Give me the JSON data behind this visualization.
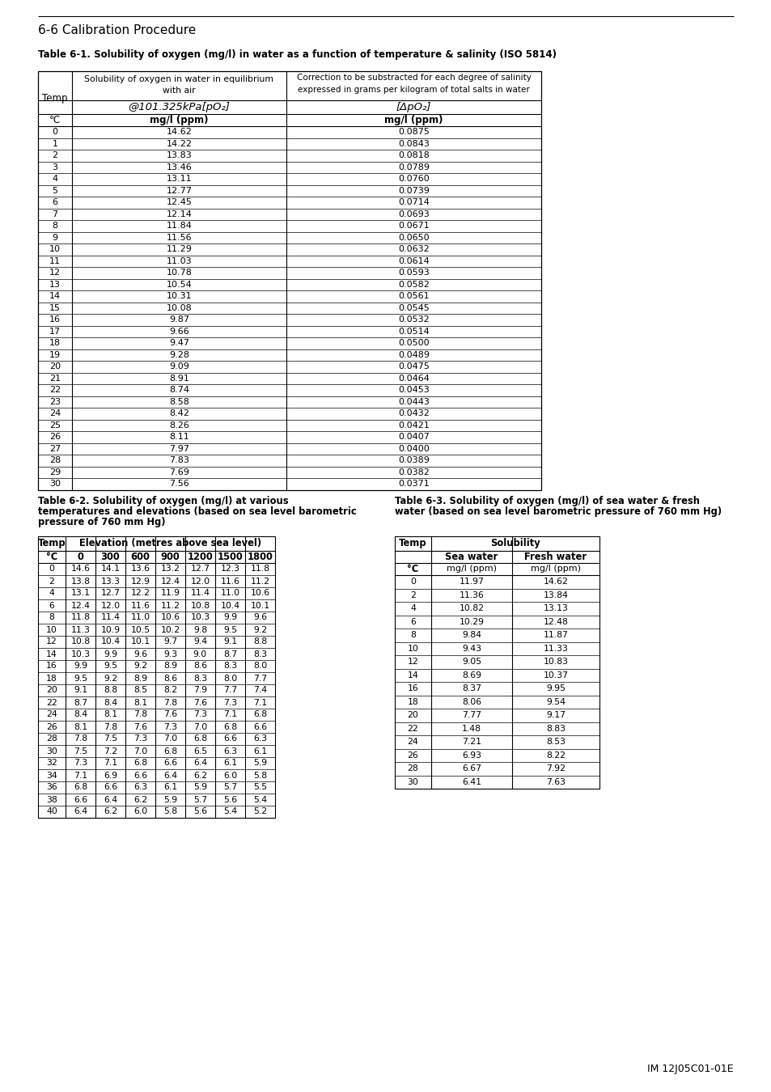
{
  "page_title": "6-6 Calibration Procedure",
  "table1_caption": "Table 6-1. Solubility of oxygen (mg/l) in water as a function of temperature & salinity (ISO 5814)",
  "table1_temps": [
    0,
    1,
    2,
    3,
    4,
    5,
    6,
    7,
    8,
    9,
    10,
    11,
    12,
    13,
    14,
    15,
    16,
    17,
    18,
    19,
    20,
    21,
    22,
    23,
    24,
    25,
    26,
    27,
    28,
    29,
    30
  ],
  "table1_sol": [
    "14.62",
    "14.22",
    "13.83",
    "13.46",
    "13.11",
    "12.77",
    "12.45",
    "12.14",
    "11.84",
    "11.56",
    "11.29",
    "11.03",
    "10.78",
    "10.54",
    "10.31",
    "10.08",
    "9.87",
    "9.66",
    "9.47",
    "9.28",
    "9.09",
    "8.91",
    "8.74",
    "8.58",
    "8.42",
    "8.26",
    "8.11",
    "7.97",
    "7.83",
    "7.69",
    "7.56"
  ],
  "table1_corr": [
    "0.0875",
    "0.0843",
    "0.0818",
    "0.0789",
    "0.0760",
    "0.0739",
    "0.0714",
    "0.0693",
    "0.0671",
    "0.0650",
    "0.0632",
    "0.0614",
    "0.0593",
    "0.0582",
    "0.0561",
    "0.0545",
    "0.0532",
    "0.0514",
    "0.0500",
    "0.0489",
    "0.0475",
    "0.0464",
    "0.0453",
    "0.0443",
    "0.0432",
    "0.0421",
    "0.0407",
    "0.0400",
    "0.0389",
    "0.0382",
    "0.0371"
  ],
  "table2_caption_l1": "Table 6-2. Solubility of oxygen (mg/l) at various",
  "table2_caption_l2": "temperatures and elevations (based on sea level barometric",
  "table2_caption_l3": "pressure of 760 mm Hg)",
  "table3_caption_l1": "Table 6-3. Solubility of oxygen (mg/l) of sea water & fresh",
  "table3_caption_l2": "water (based on sea level barometric pressure of 760 mm Hg)",
  "table2_elevations": [
    "0",
    "300",
    "600",
    "900",
    "1200",
    "1500",
    "1800"
  ],
  "table2_data": [
    [
      0,
      14.6,
      14.1,
      13.6,
      13.2,
      12.7,
      12.3,
      11.8
    ],
    [
      2,
      13.8,
      13.3,
      12.9,
      12.4,
      12.0,
      11.6,
      11.2
    ],
    [
      4,
      13.1,
      12.7,
      12.2,
      11.9,
      11.4,
      11.0,
      10.6
    ],
    [
      6,
      12.4,
      12.0,
      11.6,
      11.2,
      10.8,
      10.4,
      10.1
    ],
    [
      8,
      11.8,
      11.4,
      11.0,
      10.6,
      10.3,
      9.9,
      9.6
    ],
    [
      10,
      11.3,
      10.9,
      10.5,
      10.2,
      9.8,
      9.5,
      9.2
    ],
    [
      12,
      10.8,
      10.4,
      10.1,
      9.7,
      9.4,
      9.1,
      8.8
    ],
    [
      14,
      10.3,
      9.9,
      9.6,
      9.3,
      9.0,
      8.7,
      8.3
    ],
    [
      16,
      9.9,
      9.5,
      9.2,
      8.9,
      8.6,
      8.3,
      8.0
    ],
    [
      18,
      9.5,
      9.2,
      8.9,
      8.6,
      8.3,
      8.0,
      7.7
    ],
    [
      20,
      9.1,
      8.8,
      8.5,
      8.2,
      7.9,
      7.7,
      7.4
    ],
    [
      22,
      8.7,
      8.4,
      8.1,
      7.8,
      7.6,
      7.3,
      7.1
    ],
    [
      24,
      8.4,
      8.1,
      7.8,
      7.6,
      7.3,
      7.1,
      6.8
    ],
    [
      26,
      8.1,
      7.8,
      7.6,
      7.3,
      7.0,
      6.8,
      6.6
    ],
    [
      28,
      7.8,
      7.5,
      7.3,
      7.0,
      6.8,
      6.6,
      6.3
    ],
    [
      30,
      7.5,
      7.2,
      7.0,
      6.8,
      6.5,
      6.3,
      6.1
    ],
    [
      32,
      7.3,
      7.1,
      6.8,
      6.6,
      6.4,
      6.1,
      5.9
    ],
    [
      34,
      7.1,
      6.9,
      6.6,
      6.4,
      6.2,
      6.0,
      5.8
    ],
    [
      36,
      6.8,
      6.6,
      6.3,
      6.1,
      5.9,
      5.7,
      5.5
    ],
    [
      38,
      6.6,
      6.4,
      6.2,
      5.9,
      5.7,
      5.6,
      5.4
    ],
    [
      40,
      6.4,
      6.2,
      6.0,
      5.8,
      5.6,
      5.4,
      5.2
    ]
  ],
  "table3_data": [
    [
      0,
      "11.97",
      "14.62"
    ],
    [
      2,
      "11.36",
      "13.84"
    ],
    [
      4,
      "10.82",
      "13.13"
    ],
    [
      6,
      "10.29",
      "12.48"
    ],
    [
      8,
      "9.84",
      "11.87"
    ],
    [
      10,
      "9.43",
      "11.33"
    ],
    [
      12,
      "9.05",
      "10.83"
    ],
    [
      14,
      "8.69",
      "10.37"
    ],
    [
      16,
      "8.37",
      "9.95"
    ],
    [
      18,
      "8.06",
      "9.54"
    ],
    [
      20,
      "7.77",
      "9.17"
    ],
    [
      22,
      "1.48",
      "8.83"
    ],
    [
      24,
      "7.21",
      "8.53"
    ],
    [
      26,
      "6.93",
      "8.22"
    ],
    [
      28,
      "6.67",
      "7.92"
    ],
    [
      30,
      "6.41",
      "7.63"
    ]
  ],
  "footer": "IM 12J05C01-01E"
}
